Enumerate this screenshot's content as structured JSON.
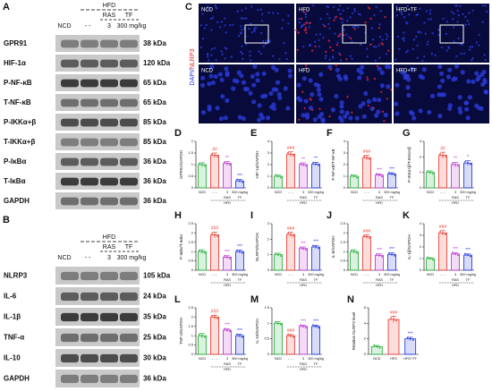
{
  "panel_labels": {
    "A": "A",
    "B": "B",
    "C": "C"
  },
  "blot_A": {
    "header": {
      "group": "HFD",
      "ras": "RAS",
      "tf": "TF",
      "ncd": "NCD",
      "dash": "- -",
      "ras_dose": "3",
      "tf_dose": "300 mg/kg"
    },
    "rows": [
      {
        "protein": "GPR91",
        "size": "38 kDa"
      },
      {
        "protein": "HIF-1α",
        "size": "120 kDa"
      },
      {
        "protein": "P-NF-κB",
        "size": "65 kDa"
      },
      {
        "protein": "T-NF-κB",
        "size": "65 kDa"
      },
      {
        "protein": "P-IKKα+β",
        "size": "85 kDa"
      },
      {
        "protein": "T-IKKα+β",
        "size": "85 kDa"
      },
      {
        "protein": "P-IκBα",
        "size": "36 kDa"
      },
      {
        "protein": "T-IκBα",
        "size": "36 kDa"
      },
      {
        "protein": "GAPDH",
        "size": "36 kDa"
      }
    ]
  },
  "blot_B": {
    "header": {
      "group": "HFD",
      "ras": "RAS",
      "tf": "TF",
      "ncd": "NCD",
      "dash": "- -",
      "ras_dose": "3",
      "tf_dose": "300 mg/kg"
    },
    "rows": [
      {
        "protein": "NLRP3",
        "size": "105 kDa"
      },
      {
        "protein": "IL-6",
        "size": "24 kDa"
      },
      {
        "protein": "IL-1β",
        "size": "35 kDa"
      },
      {
        "protein": "TNF-α",
        "size": "25 kDa"
      },
      {
        "protein": "IL-10",
        "size": "30 kDa"
      },
      {
        "protein": "GAPDH",
        "size": "36 kDa"
      }
    ]
  },
  "images": {
    "y_label_dapi": "DAPI/",
    "y_label_nlrp3": "NLRP3",
    "top": [
      "NCD",
      "HFD",
      "HFD+TF"
    ],
    "bottom": [
      "NCD",
      "HFD",
      "HFD+TF"
    ]
  },
  "chart_data": [
    {
      "type": "bar",
      "label": "D",
      "y_label": "GPR91/GAPDH",
      "categories": [
        "NCD",
        "- - -",
        "3",
        "300 mg/kg"
      ],
      "x_groups": [
        "RAS",
        "TF",
        "HFD"
      ],
      "colors": [
        "#2fb344",
        "#e8433a",
        "#c13bd3",
        "#2a3fe0"
      ],
      "values": [
        1,
        1.4,
        1.05,
        0.3
      ],
      "errors": [
        0.08,
        0.1,
        0.08,
        0.06
      ],
      "annotations": [
        null,
        "##",
        "**",
        "***"
      ],
      "ylim": [
        0,
        2
      ],
      "yticks": [
        0,
        0.5,
        1,
        1.5,
        2
      ]
    },
    {
      "type": "bar",
      "label": "E",
      "y_label": "HIF-1α/GAPDH",
      "categories": [
        "NCD",
        "- - -",
        "3",
        "300 mg/kg"
      ],
      "x_groups": [
        "RAS",
        "TF",
        "HFD"
      ],
      "colors": [
        "#2fb344",
        "#e8433a",
        "#c13bd3",
        "#2a3fe0"
      ],
      "values": [
        1,
        2.9,
        2.0,
        2.05
      ],
      "errors": [
        0.1,
        0.2,
        0.15,
        0.15
      ],
      "annotations": [
        null,
        "###",
        "**",
        "**"
      ],
      "ylim": [
        0,
        4
      ],
      "yticks": [
        0,
        1,
        2,
        3,
        4
      ]
    },
    {
      "type": "bar",
      "label": "F",
      "y_label": "P-NF-κB/T-NF-κB",
      "categories": [
        "NCD",
        "- - -",
        "3",
        "300 mg/kg"
      ],
      "x_groups": [
        "RAS",
        "TF",
        "HFD"
      ],
      "colors": [
        "#2fb344",
        "#e8433a",
        "#c13bd3",
        "#2a3fe0"
      ],
      "values": [
        1,
        2.6,
        1.1,
        1.2
      ],
      "errors": [
        0.1,
        0.2,
        0.1,
        0.1
      ],
      "annotations": [
        null,
        "###",
        "***",
        "***"
      ],
      "ylim": [
        0,
        4
      ],
      "yticks": [
        0,
        1,
        2,
        3,
        4
      ]
    },
    {
      "type": "bar",
      "label": "G",
      "y_label": "P-IKKα+β/T-IKKα+β",
      "categories": [
        "NCD",
        "- - -",
        "3",
        "300 mg/kg"
      ],
      "x_groups": [
        "RAS",
        "TF",
        "HFD"
      ],
      "colors": [
        "#2fb344",
        "#e8433a",
        "#c13bd3",
        "#2a3fe0"
      ],
      "values": [
        1,
        2.1,
        1.5,
        1.6
      ],
      "errors": [
        0.1,
        0.2,
        0.15,
        0.15
      ],
      "annotations": [
        null,
        "##",
        "**",
        "*"
      ],
      "ylim": [
        0,
        3
      ],
      "yticks": [
        0,
        1,
        2,
        3
      ]
    },
    {
      "type": "bar",
      "label": "H",
      "y_label": "P-IκBα/T-IκBα",
      "categories": [
        "NCD",
        "- - -",
        "3",
        "300 mg/kg"
      ],
      "x_groups": [
        "RAS",
        "TF",
        "HFD"
      ],
      "colors": [
        "#2fb344",
        "#e8433a",
        "#c13bd3",
        "#2a3fe0"
      ],
      "values": [
        1,
        1.9,
        0.7,
        1.0
      ],
      "errors": [
        0.1,
        0.15,
        0.08,
        0.08
      ],
      "annotations": [
        null,
        "###",
        "***",
        "***"
      ],
      "ylim": [
        0,
        2.5
      ],
      "yticks": [
        0,
        0.5,
        1,
        1.5,
        2,
        2.5
      ]
    },
    {
      "type": "bar",
      "label": "I",
      "y_label": "NLRP3/GAPDH",
      "categories": [
        "NCD",
        "- - -",
        "3",
        "300 mg/kg"
      ],
      "x_groups": [
        "RAS",
        "TF",
        "HFD"
      ],
      "colors": [
        "#2fb344",
        "#e8433a",
        "#c13bd3",
        "#2a3fe0"
      ],
      "values": [
        1,
        2.3,
        1.4,
        1.5
      ],
      "errors": [
        0.1,
        0.15,
        0.1,
        0.1
      ],
      "annotations": [
        null,
        "###",
        "***",
        "***"
      ],
      "ylim": [
        0,
        3
      ],
      "yticks": [
        0,
        1,
        2,
        3
      ]
    },
    {
      "type": "bar",
      "label": "J",
      "y_label": "IL-6/GAPDH",
      "categories": [
        "NCD",
        "- - -",
        "3",
        "300 mg/kg"
      ],
      "x_groups": [
        "RAS",
        "TF",
        "HFD"
      ],
      "colors": [
        "#2fb344",
        "#e8433a",
        "#c13bd3",
        "#2a3fe0"
      ],
      "values": [
        1,
        1.8,
        0.8,
        0.85
      ],
      "errors": [
        0.1,
        0.1,
        0.08,
        0.08
      ],
      "annotations": [
        null,
        "###",
        "***",
        "***"
      ],
      "ylim": [
        0,
        2.5
      ],
      "yticks": [
        0,
        0.5,
        1,
        1.5,
        2,
        2.5
      ]
    },
    {
      "type": "bar",
      "label": "K",
      "y_label": "IL-1β/GAPDH",
      "categories": [
        "NCD",
        "- - -",
        "3",
        "300 mg/kg"
      ],
      "x_groups": [
        "RAS",
        "TF",
        "HFD"
      ],
      "colors": [
        "#2fb344",
        "#e8433a",
        "#c13bd3",
        "#2a3fe0"
      ],
      "values": [
        1,
        3.2,
        1.4,
        1.3
      ],
      "errors": [
        0.08,
        0.2,
        0.1,
        0.1
      ],
      "annotations": [
        null,
        "###",
        "***",
        "***"
      ],
      "ylim": [
        0,
        4
      ],
      "yticks": [
        0,
        1,
        2,
        3,
        4
      ]
    },
    {
      "type": "bar",
      "label": "L",
      "y_label": "TNF-α/GAPDH",
      "categories": [
        "NCD",
        "- - -",
        "3",
        "300 mg/kg"
      ],
      "x_groups": [
        "RAS",
        "TF",
        "HFD"
      ],
      "colors": [
        "#2fb344",
        "#e8433a",
        "#c13bd3",
        "#2a3fe0"
      ],
      "values": [
        1,
        2.0,
        1.3,
        1.0
      ],
      "errors": [
        0.12,
        0.1,
        0.08,
        0.08
      ],
      "annotations": [
        null,
        "###",
        "***",
        "***"
      ],
      "ylim": [
        0,
        2.5
      ],
      "yticks": [
        0,
        0.5,
        1,
        1.5,
        2,
        2.5
      ]
    },
    {
      "type": "bar",
      "label": "M",
      "y_label": "IL-10/GAPDH",
      "categories": [
        "NCD",
        "- - -",
        "3",
        "300 mg/kg"
      ],
      "x_groups": [
        "RAS",
        "TF",
        "HFD"
      ],
      "colors": [
        "#2fb344",
        "#e8433a",
        "#c13bd3",
        "#2a3fe0"
      ],
      "values": [
        1,
        0.6,
        0.9,
        0.9
      ],
      "errors": [
        0.05,
        0.04,
        0.04,
        0.04
      ],
      "annotations": [
        null,
        "###",
        "***",
        "***"
      ],
      "ylim": [
        0,
        1.5
      ],
      "yticks": [
        0,
        0.5,
        1,
        1.5
      ]
    },
    {
      "type": "bar",
      "label": "N",
      "y_label": "Relative NLRP3 level",
      "categories": [
        "NCD",
        "HFD",
        "HFD+TF"
      ],
      "colors": [
        "#2fb344",
        "#e8433a",
        "#2a3fe0"
      ],
      "values": [
        1,
        4.5,
        2.0
      ],
      "errors": [
        0.15,
        0.4,
        0.2
      ],
      "annotations": [
        null,
        "###",
        "***"
      ],
      "ylim": [
        0,
        6
      ],
      "yticks": [
        0,
        2,
        4,
        6
      ]
    }
  ]
}
